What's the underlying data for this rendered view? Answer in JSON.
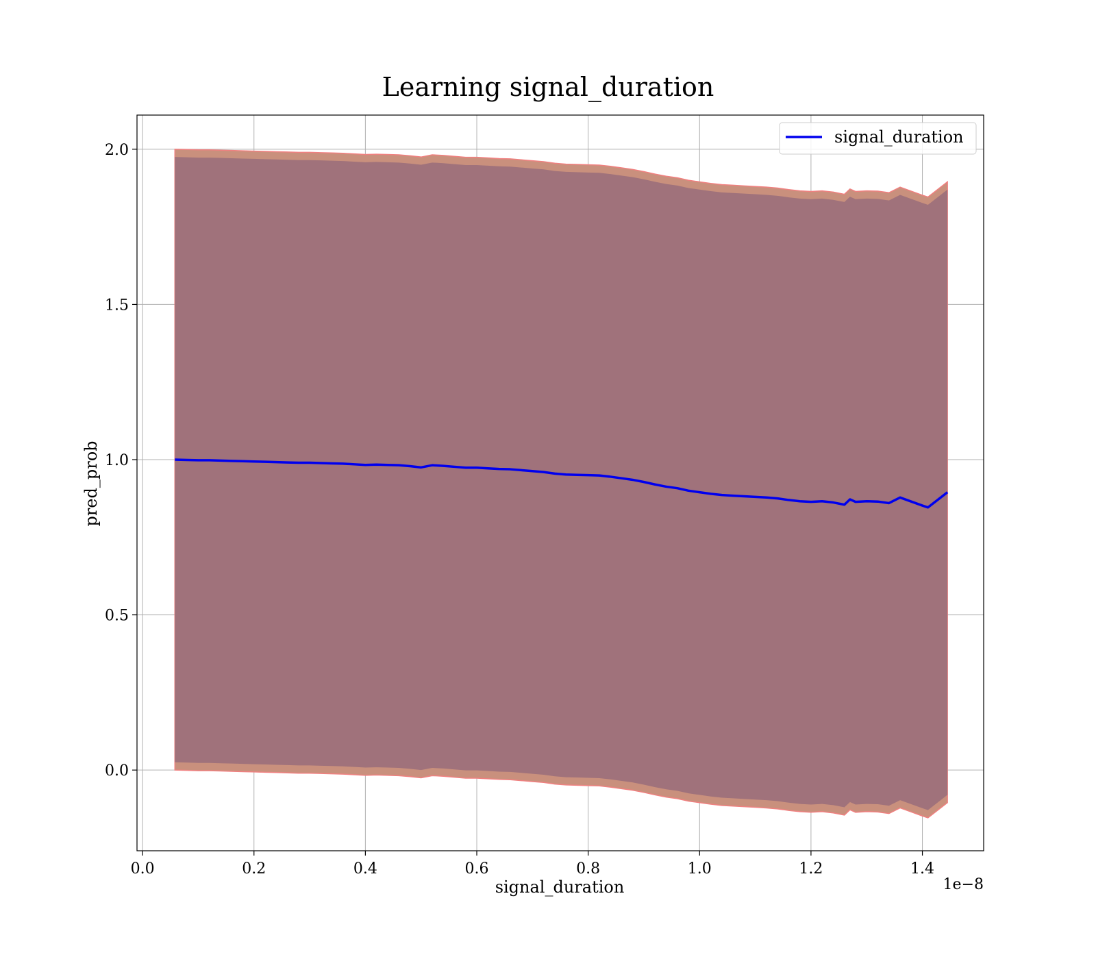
{
  "chart_data": {
    "type": "line",
    "title": "Learning signal_duration",
    "xlabel": "signal_duration",
    "ylabel": "pred_prob",
    "x_offset_label": "1e−8",
    "xlim": [
      -0.01,
      1.51
    ],
    "ylim": [
      -0.26,
      2.11
    ],
    "x_ticks": [
      {
        "value": 0.0,
        "label": "0.0"
      },
      {
        "value": 0.2,
        "label": "0.2"
      },
      {
        "value": 0.4,
        "label": "0.4"
      },
      {
        "value": 0.6,
        "label": "0.6"
      },
      {
        "value": 0.8,
        "label": "0.8"
      },
      {
        "value": 1.0,
        "label": "1.0"
      },
      {
        "value": 1.2,
        "label": "1.2"
      },
      {
        "value": 1.4,
        "label": "1.4"
      }
    ],
    "y_ticks": [
      {
        "value": 0.0,
        "label": "0.0"
      },
      {
        "value": 0.5,
        "label": "0.5"
      },
      {
        "value": 1.0,
        "label": "1.0"
      },
      {
        "value": 1.5,
        "label": "1.5"
      },
      {
        "value": 2.0,
        "label": "2.0"
      }
    ],
    "grid": true,
    "legend": {
      "position": "top-right",
      "entries": [
        "signal_duration"
      ]
    },
    "colors": {
      "line": "#0000ee",
      "band_outer": "#c9907d",
      "band_outer_edge": "#f08080",
      "band_inner": "#a0727b"
    },
    "band_half_widths": {
      "outer": 1.0,
      "inner": 0.975
    },
    "series": [
      {
        "name": "signal_duration",
        "x": [
          0.058,
          0.08,
          0.1,
          0.12,
          0.14,
          0.16,
          0.18,
          0.2,
          0.22,
          0.24,
          0.26,
          0.28,
          0.3,
          0.32,
          0.34,
          0.36,
          0.38,
          0.4,
          0.42,
          0.44,
          0.46,
          0.48,
          0.5,
          0.52,
          0.54,
          0.56,
          0.58,
          0.6,
          0.62,
          0.64,
          0.66,
          0.68,
          0.7,
          0.72,
          0.74,
          0.76,
          0.78,
          0.8,
          0.82,
          0.84,
          0.86,
          0.88,
          0.9,
          0.92,
          0.94,
          0.96,
          0.98,
          1.0,
          1.02,
          1.04,
          1.06,
          1.08,
          1.1,
          1.12,
          1.14,
          1.16,
          1.18,
          1.2,
          1.22,
          1.24,
          1.26,
          1.27,
          1.28,
          1.3,
          1.32,
          1.34,
          1.36,
          1.38,
          1.4,
          1.41,
          1.445
        ],
        "y": [
          1.0,
          0.999,
          0.998,
          0.998,
          0.997,
          0.996,
          0.995,
          0.994,
          0.993,
          0.992,
          0.991,
          0.99,
          0.99,
          0.989,
          0.988,
          0.987,
          0.985,
          0.983,
          0.984,
          0.983,
          0.982,
          0.979,
          0.975,
          0.982,
          0.98,
          0.977,
          0.974,
          0.974,
          0.972,
          0.97,
          0.969,
          0.966,
          0.963,
          0.96,
          0.955,
          0.952,
          0.951,
          0.95,
          0.949,
          0.945,
          0.94,
          0.935,
          0.928,
          0.92,
          0.913,
          0.908,
          0.9,
          0.895,
          0.89,
          0.886,
          0.884,
          0.882,
          0.88,
          0.878,
          0.875,
          0.87,
          0.866,
          0.864,
          0.866,
          0.862,
          0.855,
          0.872,
          0.864,
          0.866,
          0.865,
          0.86,
          0.878,
          0.865,
          0.852,
          0.846,
          0.895
        ]
      }
    ]
  }
}
